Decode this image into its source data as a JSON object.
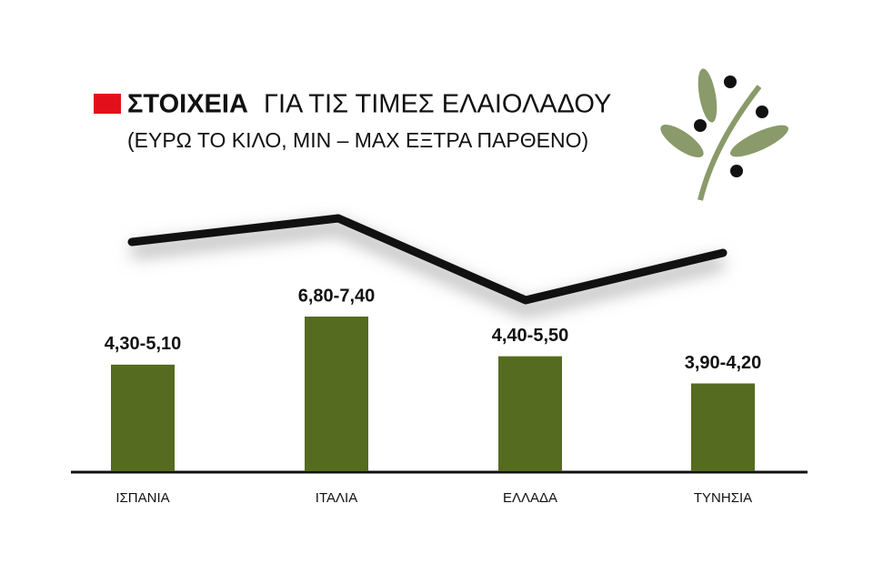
{
  "chart_data": {
    "type": "bar",
    "title_bold": "ΣΤΟΙΧΕΙΑ",
    "title": "ΓΙΑ ΤΙΣ ΤΙΜΕΣ ΕΛΑΙΟΛΑΔΟΥ",
    "subtitle": "(ΕΥΡΩ ΤΟ ΚΙΛΟ, ΜΙΝ – ΜΑΧ ΕΞΤΡΑ ΠΑΡΘΕΝΟ)",
    "categories": [
      "ΙΣΠΑΝΙΑ",
      "ΙΤΑΛΙΑ",
      "ΕΛΛΑΔΑ",
      "ΤΥΝΗΣΙΑ"
    ],
    "low": [
      4.3,
      6.8,
      4.4,
      3.9
    ],
    "high": [
      5.1,
      7.4,
      5.5,
      4.2
    ],
    "value_labels": [
      "4,30-5,10",
      "6,80-7,40",
      "4,40-5,50",
      "3,90-4,20"
    ],
    "color": "#556b1f"
  }
}
